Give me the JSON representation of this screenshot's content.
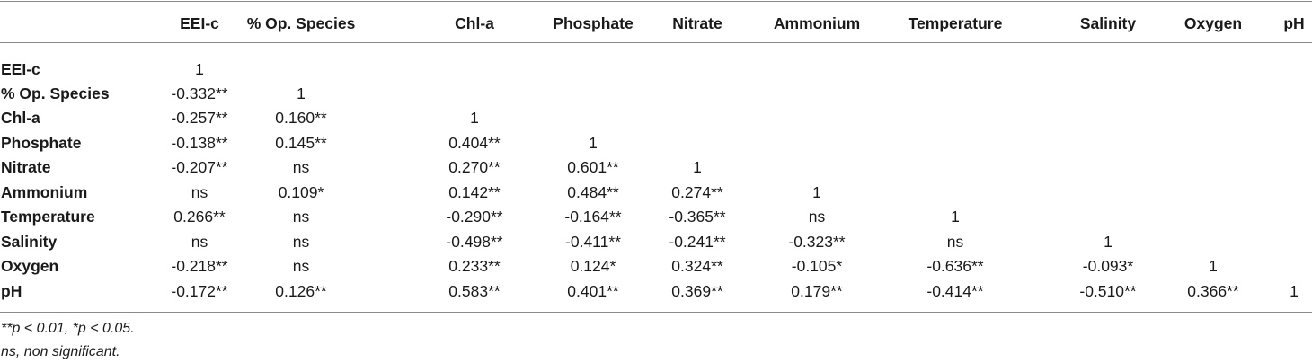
{
  "table": {
    "columns": [
      "EEI-c",
      "% Op. Species",
      "Chl-a",
      "Phosphate",
      "Nitrate",
      "Ammonium",
      "Temperature",
      "Salinity",
      "Oxygen",
      "pH"
    ],
    "rows": [
      {
        "label": "EEI-c",
        "values": [
          "1",
          "",
          "",
          "",
          "",
          "",
          "",
          "",
          "",
          ""
        ]
      },
      {
        "label": "% Op. Species",
        "values": [
          "-0.332**",
          "1",
          "",
          "",
          "",
          "",
          "",
          "",
          "",
          ""
        ]
      },
      {
        "label": "Chl-a",
        "values": [
          "-0.257**",
          "0.160**",
          "1",
          "",
          "",
          "",
          "",
          "",
          "",
          ""
        ]
      },
      {
        "label": "Phosphate",
        "values": [
          "-0.138**",
          "0.145**",
          "0.404**",
          "1",
          "",
          "",
          "",
          "",
          "",
          ""
        ]
      },
      {
        "label": "Nitrate",
        "values": [
          "-0.207**",
          "ns",
          "0.270**",
          "0.601**",
          "1",
          "",
          "",
          "",
          "",
          ""
        ]
      },
      {
        "label": "Ammonium",
        "values": [
          "ns",
          "0.109*",
          "0.142**",
          "0.484**",
          "0.274**",
          "1",
          "",
          "",
          "",
          ""
        ]
      },
      {
        "label": "Temperature",
        "values": [
          "0.266**",
          "ns",
          "-0.290**",
          "-0.164**",
          "-0.365**",
          "ns",
          "1",
          "",
          "",
          ""
        ]
      },
      {
        "label": "Salinity",
        "values": [
          "ns",
          "ns",
          "-0.498**",
          "-0.411**",
          "-0.241**",
          "-0.323**",
          "ns",
          "1",
          "",
          ""
        ]
      },
      {
        "label": "Oxygen",
        "values": [
          "-0.218**",
          "ns",
          "0.233**",
          "0.124*",
          "0.324**",
          "-0.105*",
          "-0.636**",
          "-0.093*",
          "1",
          ""
        ]
      },
      {
        "label": "pH",
        "values": [
          "-0.172**",
          "0.126**",
          "0.583**",
          "0.401**",
          "0.369**",
          "0.179**",
          "-0.414**",
          "-0.510**",
          "0.366**",
          "1"
        ]
      }
    ]
  },
  "footnotes": {
    "significance": "**p < 0.01, *p < 0.05.",
    "ns": "ns, non significant."
  }
}
